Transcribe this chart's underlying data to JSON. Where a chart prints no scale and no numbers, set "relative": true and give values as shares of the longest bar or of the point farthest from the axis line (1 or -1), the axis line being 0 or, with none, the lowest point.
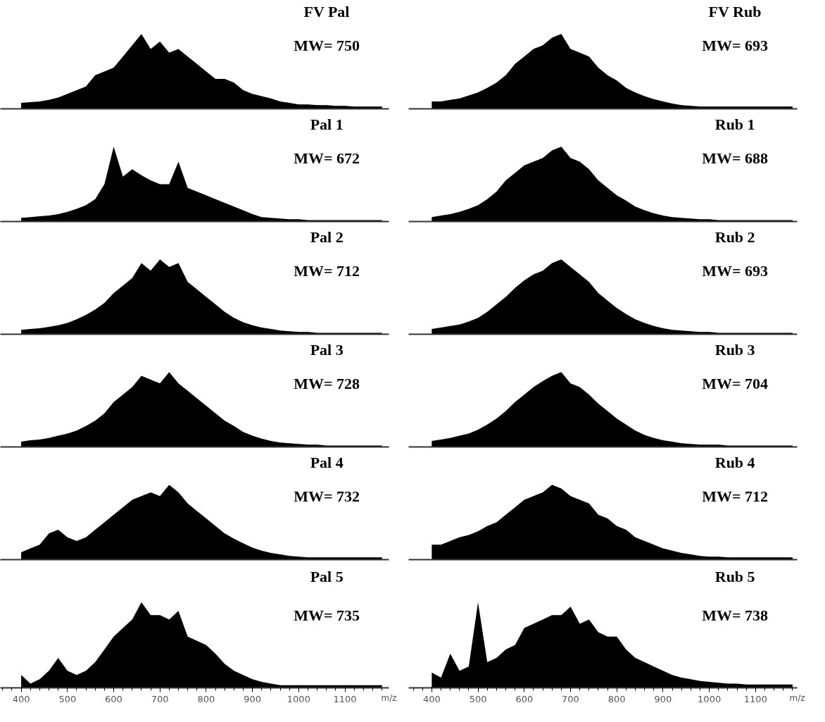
{
  "chart_data": [
    {
      "type": "area",
      "title": "FV Pal",
      "annotations": [
        "MW= 750"
      ],
      "relative": true,
      "xlim": [
        355,
        1195
      ],
      "xticks": [
        400,
        500,
        600,
        700,
        800,
        900,
        1000,
        1100
      ],
      "tick_labels": false,
      "x": [
        400,
        420,
        440,
        460,
        480,
        500,
        520,
        540,
        560,
        580,
        600,
        620,
        640,
        660,
        680,
        700,
        720,
        740,
        760,
        780,
        800,
        820,
        840,
        860,
        880,
        900,
        920,
        940,
        960,
        980,
        1000,
        1020,
        1040,
        1060,
        1080,
        1100,
        1120,
        1140,
        1160,
        1180
      ],
      "series": [
        {
          "color": "#000000",
          "values": [
            0.08,
            0.09,
            0.1,
            0.12,
            0.15,
            0.2,
            0.25,
            0.3,
            0.45,
            0.5,
            0.55,
            0.7,
            0.85,
            1.0,
            0.8,
            0.9,
            0.75,
            0.8,
            0.7,
            0.6,
            0.5,
            0.4,
            0.4,
            0.35,
            0.25,
            0.2,
            0.17,
            0.14,
            0.1,
            0.08,
            0.06,
            0.06,
            0.05,
            0.05,
            0.04,
            0.04,
            0.03,
            0.03,
            0.03,
            0.03
          ]
        }
      ]
    },
    {
      "type": "area",
      "title": "FV Rub",
      "annotations": [
        "MW= 693"
      ],
      "relative": true,
      "xlim": [
        350,
        1190
      ],
      "xticks": [
        400,
        500,
        600,
        700,
        800,
        900,
        1000,
        1100
      ],
      "tick_labels": false,
      "x": [
        400,
        420,
        440,
        460,
        480,
        500,
        520,
        540,
        560,
        580,
        600,
        620,
        640,
        660,
        680,
        700,
        720,
        740,
        760,
        780,
        800,
        820,
        840,
        860,
        880,
        900,
        920,
        940,
        960,
        980,
        1000,
        1020,
        1040,
        1060,
        1080,
        1100,
        1120,
        1140,
        1160,
        1180
      ],
      "series": [
        {
          "color": "#000000",
          "values": [
            0.1,
            0.1,
            0.12,
            0.14,
            0.18,
            0.22,
            0.28,
            0.35,
            0.45,
            0.6,
            0.7,
            0.8,
            0.85,
            0.95,
            1.0,
            0.8,
            0.75,
            0.7,
            0.55,
            0.45,
            0.38,
            0.28,
            0.22,
            0.17,
            0.13,
            0.1,
            0.07,
            0.05,
            0.04,
            0.03,
            0.03,
            0.03,
            0.03,
            0.03,
            0.03,
            0.03,
            0.03,
            0.03,
            0.03,
            0.03
          ]
        }
      ]
    },
    {
      "type": "area",
      "title": "Pal 1",
      "annotations": [
        "MW= 672"
      ],
      "relative": true,
      "xlim": [
        355,
        1195
      ],
      "xticks": [
        400,
        500,
        600,
        700,
        800,
        900,
        1000,
        1100
      ],
      "tick_labels": false,
      "x": [
        400,
        420,
        440,
        460,
        480,
        500,
        520,
        540,
        560,
        580,
        600,
        620,
        640,
        660,
        680,
        700,
        720,
        740,
        760,
        780,
        800,
        820,
        840,
        860,
        880,
        900,
        920,
        940,
        960,
        980,
        1000,
        1020,
        1040,
        1060,
        1080,
        1100,
        1120,
        1140,
        1160,
        1180
      ],
      "series": [
        {
          "color": "#000000",
          "values": [
            0.05,
            0.06,
            0.07,
            0.08,
            0.1,
            0.13,
            0.17,
            0.22,
            0.3,
            0.5,
            1.0,
            0.6,
            0.7,
            0.62,
            0.55,
            0.5,
            0.5,
            0.8,
            0.45,
            0.4,
            0.35,
            0.3,
            0.25,
            0.2,
            0.15,
            0.1,
            0.06,
            0.05,
            0.04,
            0.03,
            0.03,
            0.02,
            0.02,
            0.02,
            0.02,
            0.02,
            0.02,
            0.02,
            0.02,
            0.02
          ]
        }
      ]
    },
    {
      "type": "area",
      "title": "Rub 1",
      "annotations": [
        "MW= 688"
      ],
      "relative": true,
      "xlim": [
        350,
        1190
      ],
      "xticks": [
        400,
        500,
        600,
        700,
        800,
        900,
        1000,
        1100
      ],
      "tick_labels": false,
      "x": [
        400,
        420,
        440,
        460,
        480,
        500,
        520,
        540,
        560,
        580,
        600,
        620,
        640,
        660,
        680,
        700,
        720,
        740,
        760,
        780,
        800,
        820,
        840,
        860,
        880,
        900,
        920,
        940,
        960,
        980,
        1000,
        1020,
        1040,
        1060,
        1080,
        1100,
        1120,
        1140,
        1160,
        1180
      ],
      "series": [
        {
          "color": "#000000",
          "values": [
            0.06,
            0.08,
            0.1,
            0.13,
            0.17,
            0.22,
            0.3,
            0.4,
            0.55,
            0.65,
            0.75,
            0.8,
            0.85,
            0.95,
            1.0,
            0.85,
            0.8,
            0.7,
            0.55,
            0.45,
            0.35,
            0.28,
            0.2,
            0.15,
            0.11,
            0.08,
            0.06,
            0.05,
            0.04,
            0.03,
            0.03,
            0.02,
            0.02,
            0.02,
            0.02,
            0.02,
            0.02,
            0.02,
            0.02,
            0.02
          ]
        }
      ]
    },
    {
      "type": "area",
      "title": "Pal 2",
      "annotations": [
        "MW= 712"
      ],
      "relative": true,
      "xlim": [
        355,
        1195
      ],
      "xticks": [
        400,
        500,
        600,
        700,
        800,
        900,
        1000,
        1100
      ],
      "tick_labels": false,
      "x": [
        400,
        420,
        440,
        460,
        480,
        500,
        520,
        540,
        560,
        580,
        600,
        620,
        640,
        660,
        680,
        700,
        720,
        740,
        760,
        780,
        800,
        820,
        840,
        860,
        880,
        900,
        920,
        940,
        960,
        980,
        1000,
        1020,
        1040,
        1060,
        1080,
        1100,
        1120,
        1140,
        1160,
        1180
      ],
      "series": [
        {
          "color": "#000000",
          "values": [
            0.06,
            0.07,
            0.08,
            0.1,
            0.12,
            0.15,
            0.2,
            0.26,
            0.33,
            0.42,
            0.55,
            0.65,
            0.75,
            0.95,
            0.85,
            1.0,
            0.9,
            0.95,
            0.7,
            0.6,
            0.5,
            0.4,
            0.3,
            0.22,
            0.16,
            0.12,
            0.09,
            0.07,
            0.05,
            0.04,
            0.03,
            0.03,
            0.02,
            0.02,
            0.02,
            0.02,
            0.02,
            0.02,
            0.02,
            0.02
          ]
        }
      ]
    },
    {
      "type": "area",
      "title": "Rub 2",
      "annotations": [
        "MW= 693"
      ],
      "relative": true,
      "xlim": [
        350,
        1190
      ],
      "xticks": [
        400,
        500,
        600,
        700,
        800,
        900,
        1000,
        1100
      ],
      "tick_labels": false,
      "x": [
        400,
        420,
        440,
        460,
        480,
        500,
        520,
        540,
        560,
        580,
        600,
        620,
        640,
        660,
        680,
        700,
        720,
        740,
        760,
        780,
        800,
        820,
        840,
        860,
        880,
        900,
        920,
        940,
        960,
        980,
        1000,
        1020,
        1040,
        1060,
        1080,
        1100,
        1120,
        1140,
        1160,
        1180
      ],
      "series": [
        {
          "color": "#000000",
          "values": [
            0.07,
            0.09,
            0.11,
            0.13,
            0.17,
            0.22,
            0.3,
            0.4,
            0.5,
            0.62,
            0.72,
            0.8,
            0.85,
            0.95,
            1.0,
            0.9,
            0.8,
            0.7,
            0.55,
            0.45,
            0.35,
            0.27,
            0.2,
            0.15,
            0.11,
            0.08,
            0.06,
            0.05,
            0.04,
            0.03,
            0.03,
            0.02,
            0.02,
            0.02,
            0.02,
            0.02,
            0.02,
            0.02,
            0.02,
            0.02
          ]
        }
      ]
    },
    {
      "type": "area",
      "title": "Pal 3",
      "annotations": [
        "MW= 728"
      ],
      "relative": true,
      "xlim": [
        355,
        1195
      ],
      "xticks": [
        400,
        500,
        600,
        700,
        800,
        900,
        1000,
        1100
      ],
      "tick_labels": false,
      "x": [
        400,
        420,
        440,
        460,
        480,
        500,
        520,
        540,
        560,
        580,
        600,
        620,
        640,
        660,
        680,
        700,
        720,
        740,
        760,
        780,
        800,
        820,
        840,
        860,
        880,
        900,
        920,
        940,
        960,
        980,
        1000,
        1020,
        1040,
        1060,
        1080,
        1100,
        1120,
        1140,
        1160,
        1180
      ],
      "series": [
        {
          "color": "#000000",
          "values": [
            0.07,
            0.09,
            0.1,
            0.12,
            0.15,
            0.18,
            0.22,
            0.28,
            0.35,
            0.45,
            0.6,
            0.7,
            0.8,
            0.95,
            0.9,
            0.85,
            1.0,
            0.85,
            0.75,
            0.65,
            0.55,
            0.45,
            0.35,
            0.28,
            0.2,
            0.15,
            0.11,
            0.08,
            0.06,
            0.05,
            0.04,
            0.03,
            0.03,
            0.02,
            0.02,
            0.02,
            0.02,
            0.02,
            0.02,
            0.02
          ]
        }
      ]
    },
    {
      "type": "area",
      "title": "Rub 3",
      "annotations": [
        "MW= 704"
      ],
      "relative": true,
      "xlim": [
        350,
        1190
      ],
      "xticks": [
        400,
        500,
        600,
        700,
        800,
        900,
        1000,
        1100
      ],
      "tick_labels": false,
      "x": [
        400,
        420,
        440,
        460,
        480,
        500,
        520,
        540,
        560,
        580,
        600,
        620,
        640,
        660,
        680,
        700,
        720,
        740,
        760,
        780,
        800,
        820,
        840,
        860,
        880,
        900,
        920,
        940,
        960,
        980,
        1000,
        1020,
        1040,
        1060,
        1080,
        1100,
        1120,
        1140,
        1160,
        1180
      ],
      "series": [
        {
          "color": "#000000",
          "values": [
            0.08,
            0.1,
            0.12,
            0.15,
            0.18,
            0.23,
            0.3,
            0.38,
            0.48,
            0.6,
            0.7,
            0.8,
            0.88,
            0.95,
            1.0,
            0.85,
            0.8,
            0.7,
            0.58,
            0.48,
            0.38,
            0.3,
            0.22,
            0.16,
            0.12,
            0.09,
            0.07,
            0.05,
            0.04,
            0.03,
            0.03,
            0.03,
            0.02,
            0.02,
            0.02,
            0.02,
            0.02,
            0.02,
            0.02,
            0.02
          ]
        }
      ]
    },
    {
      "type": "area",
      "title": "Pal 4",
      "annotations": [
        "MW= 732"
      ],
      "relative": true,
      "xlim": [
        355,
        1195
      ],
      "xticks": [
        400,
        500,
        600,
        700,
        800,
        900,
        1000,
        1100
      ],
      "tick_labels": false,
      "x": [
        400,
        420,
        440,
        460,
        480,
        500,
        520,
        540,
        560,
        580,
        600,
        620,
        640,
        660,
        680,
        700,
        720,
        740,
        760,
        780,
        800,
        820,
        840,
        860,
        880,
        900,
        920,
        940,
        960,
        980,
        1000,
        1020,
        1040,
        1060,
        1080,
        1100,
        1120,
        1140,
        1160,
        1180
      ],
      "series": [
        {
          "color": "#000000",
          "values": [
            0.1,
            0.15,
            0.2,
            0.35,
            0.4,
            0.3,
            0.25,
            0.3,
            0.4,
            0.5,
            0.6,
            0.7,
            0.8,
            0.85,
            0.9,
            0.85,
            1.0,
            0.9,
            0.75,
            0.65,
            0.55,
            0.45,
            0.35,
            0.28,
            0.22,
            0.16,
            0.12,
            0.09,
            0.07,
            0.05,
            0.04,
            0.03,
            0.03,
            0.03,
            0.03,
            0.03,
            0.03,
            0.03,
            0.03,
            0.03
          ]
        }
      ]
    },
    {
      "type": "area",
      "title": "Rub 4",
      "annotations": [
        "MW= 712"
      ],
      "relative": true,
      "xlim": [
        350,
        1190
      ],
      "xticks": [
        400,
        500,
        600,
        700,
        800,
        900,
        1000,
        1100
      ],
      "tick_labels": false,
      "x": [
        400,
        420,
        440,
        460,
        480,
        500,
        520,
        540,
        560,
        580,
        600,
        620,
        640,
        660,
        680,
        700,
        720,
        740,
        760,
        780,
        800,
        820,
        840,
        860,
        880,
        900,
        920,
        940,
        960,
        980,
        1000,
        1020,
        1040,
        1060,
        1080,
        1100,
        1120,
        1140,
        1160,
        1180
      ],
      "series": [
        {
          "color": "#000000",
          "values": [
            0.2,
            0.2,
            0.25,
            0.3,
            0.33,
            0.38,
            0.45,
            0.5,
            0.6,
            0.7,
            0.8,
            0.85,
            0.9,
            1.0,
            0.95,
            0.85,
            0.8,
            0.75,
            0.6,
            0.55,
            0.45,
            0.4,
            0.3,
            0.25,
            0.2,
            0.15,
            0.12,
            0.09,
            0.07,
            0.05,
            0.04,
            0.04,
            0.03,
            0.03,
            0.03,
            0.03,
            0.03,
            0.03,
            0.03,
            0.03
          ]
        }
      ]
    },
    {
      "type": "area",
      "title": "Pal 5",
      "annotations": [
        "MW= 735"
      ],
      "relative": true,
      "xlabel": "m/z",
      "xlim": [
        355,
        1195
      ],
      "xticks": [
        400,
        500,
        600,
        700,
        800,
        900,
        1000,
        1100
      ],
      "x": [
        400,
        420,
        440,
        460,
        480,
        500,
        520,
        540,
        560,
        580,
        600,
        620,
        640,
        660,
        680,
        700,
        720,
        740,
        760,
        780,
        800,
        820,
        840,
        860,
        880,
        900,
        920,
        940,
        960,
        980,
        1000,
        1020,
        1040,
        1060,
        1080,
        1100,
        1120,
        1140,
        1160,
        1180
      ],
      "series": [
        {
          "color": "#000000",
          "values": [
            0.15,
            0.05,
            0.1,
            0.2,
            0.35,
            0.2,
            0.15,
            0.2,
            0.3,
            0.45,
            0.6,
            0.7,
            0.8,
            1.0,
            0.85,
            0.85,
            0.8,
            0.9,
            0.6,
            0.55,
            0.5,
            0.4,
            0.28,
            0.2,
            0.15,
            0.1,
            0.07,
            0.05,
            0.03,
            0.03,
            0.03,
            0.03,
            0.03,
            0.03,
            0.03,
            0.03,
            0.03,
            0.03,
            0.03,
            0.03
          ]
        }
      ]
    },
    {
      "type": "area",
      "title": "Rub 5",
      "annotations": [
        "MW= 738"
      ],
      "relative": true,
      "xlabel": "m/z",
      "xlim": [
        350,
        1190
      ],
      "xticks": [
        400,
        500,
        600,
        700,
        800,
        900,
        1000,
        1100
      ],
      "x": [
        400,
        420,
        440,
        460,
        480,
        500,
        520,
        540,
        560,
        580,
        600,
        620,
        640,
        660,
        680,
        700,
        720,
        740,
        760,
        780,
        800,
        820,
        840,
        860,
        880,
        900,
        920,
        940,
        960,
        980,
        1000,
        1020,
        1040,
        1060,
        1080,
        1100,
        1120,
        1140,
        1160,
        1180
      ],
      "series": [
        {
          "color": "#000000",
          "values": [
            0.18,
            0.12,
            0.4,
            0.2,
            0.25,
            1.0,
            0.3,
            0.35,
            0.45,
            0.5,
            0.7,
            0.75,
            0.8,
            0.85,
            0.85,
            0.95,
            0.75,
            0.8,
            0.65,
            0.6,
            0.6,
            0.45,
            0.35,
            0.3,
            0.25,
            0.2,
            0.15,
            0.12,
            0.1,
            0.08,
            0.07,
            0.06,
            0.05,
            0.05,
            0.04,
            0.04,
            0.04,
            0.04,
            0.04,
            0.04
          ]
        }
      ]
    }
  ]
}
